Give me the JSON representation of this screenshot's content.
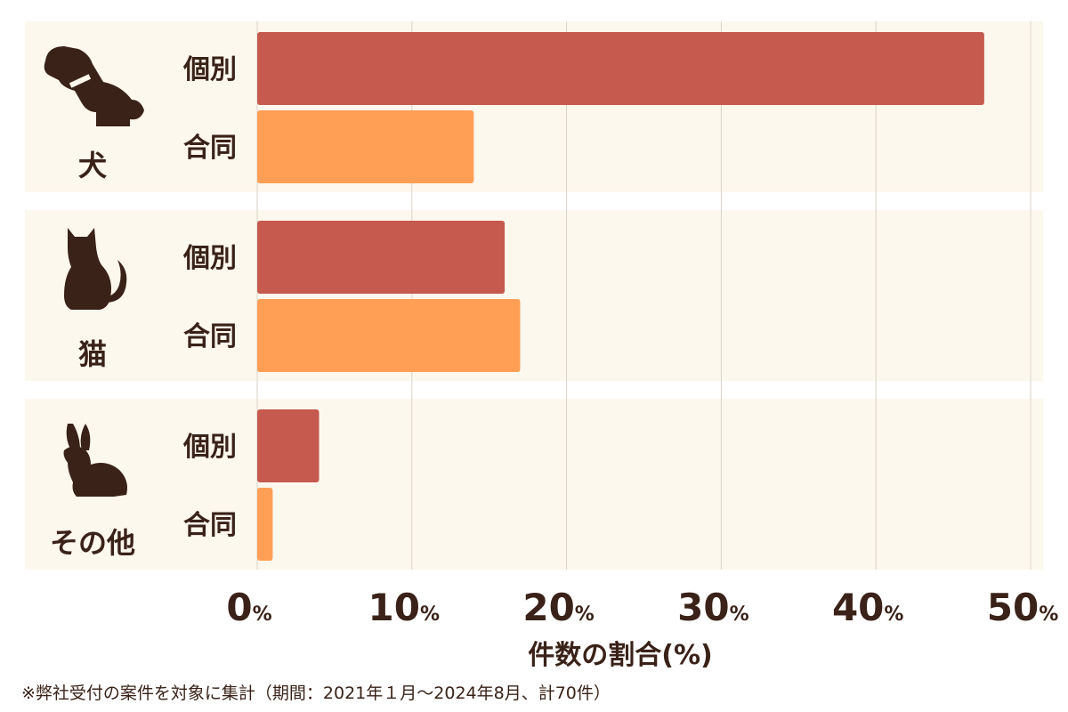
{
  "chart_data": {
    "type": "bar",
    "orientation": "horizontal",
    "xlabel": "件数の割合(%)",
    "xlim": [
      0,
      50
    ],
    "x_ticks": [
      0,
      10,
      20,
      30,
      40,
      50
    ],
    "tick_suffix": "%",
    "grid": true,
    "groups": [
      {
        "label": "犬",
        "icon": "dog-icon",
        "bars": [
          {
            "label": "個別",
            "value": 47
          },
          {
            "label": "合同",
            "value": 14
          }
        ]
      },
      {
        "label": "猫",
        "icon": "cat-icon",
        "bars": [
          {
            "label": "個別",
            "value": 16
          },
          {
            "label": "合同",
            "value": 17
          }
        ]
      },
      {
        "label": "その他",
        "icon": "rabbit-icon",
        "bars": [
          {
            "label": "個別",
            "value": 4
          },
          {
            "label": "合同",
            "value": 1
          }
        ]
      }
    ],
    "series_colors": {
      "個別": "#c65a4e",
      "合同": "#ff9f55"
    }
  },
  "colors": {
    "panel_bg": "#fdf8ee",
    "grid": "#d9d2c6",
    "icon": "#3a2218",
    "text": "#3a2218"
  },
  "footnote": "※弊社受付の案件を対象に集計（期間：2021年１月～2024年8月、計70件）"
}
